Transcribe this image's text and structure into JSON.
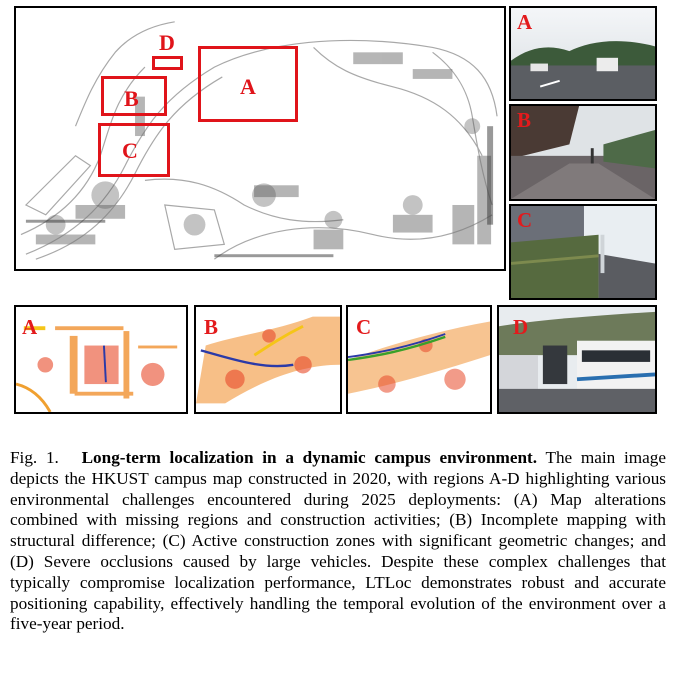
{
  "main_map": {
    "description_regions": [
      {
        "letter": "A"
      },
      {
        "letter": "B"
      },
      {
        "letter": "C"
      },
      {
        "letter": "D"
      }
    ]
  },
  "camera_panels": [
    {
      "letter": "A"
    },
    {
      "letter": "B"
    },
    {
      "letter": "C"
    }
  ],
  "bottom_panels": [
    {
      "letter": "A"
    },
    {
      "letter": "B"
    },
    {
      "letter": "C"
    },
    {
      "letter": "D"
    }
  ],
  "caption": {
    "fig_number": "Fig. 1.",
    "title": "Long-term localization in a dynamic campus environment.",
    "body": "The main image depicts the HKUST campus map constructed in 2020, with regions A-D highlighting various environmental challenges encountered during 2025 deployments: (A) Map alterations combined with missing regions and construction activities; (B) Incomplete mapping with structural difference; (C) Active construction zones with significant geometric changes; and (D) Severe occlusions caused by large vehicles. Despite these complex challenges that typically compromise localization performance, LTLoc demonstrates robust and accurate positioning capability, effectively handling the temporal evolution of the environment over a five-year period."
  },
  "colors": {
    "highlight_red": "#e0141a",
    "trajectory_blue": "#2b3aa8",
    "trajectory_green": "#3aa02a",
    "pointcloud_orange": "#f08a24"
  }
}
